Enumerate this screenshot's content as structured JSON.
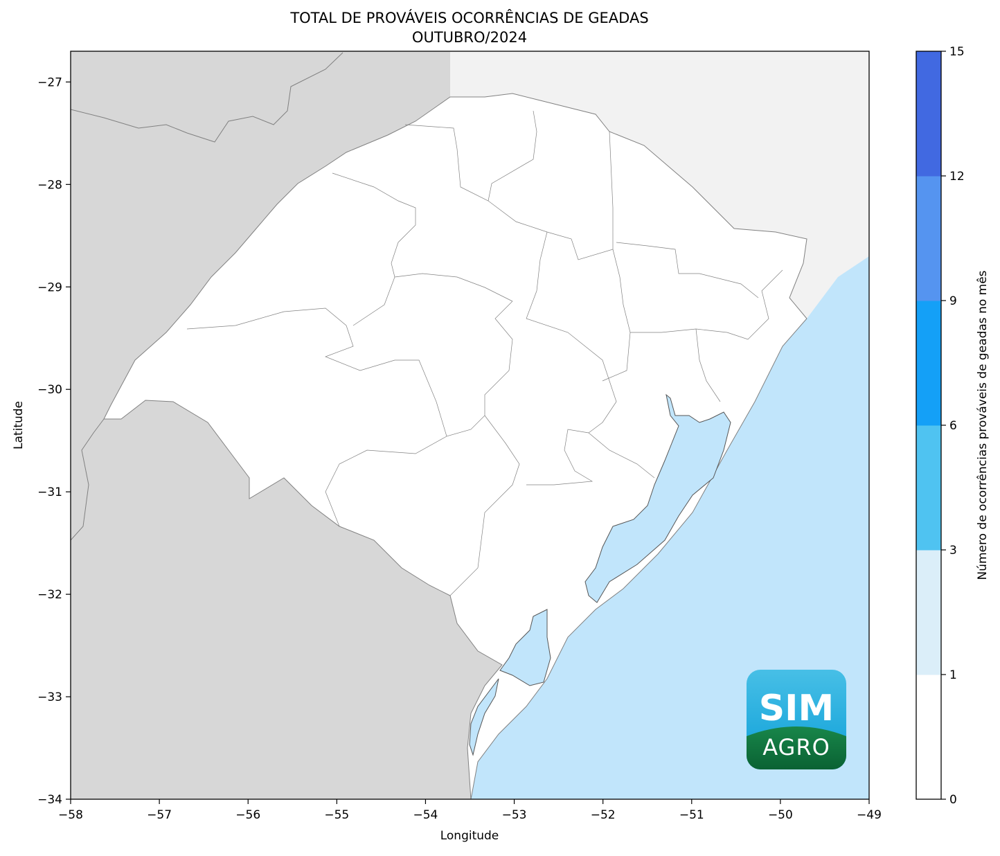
{
  "title": {
    "line1": "TOTAL DE PROVÁVEIS OCORRÊNCIAS DE GEADAS",
    "line2": "OUTUBRO/2024"
  },
  "axes": {
    "xlabel": "Longitude",
    "ylabel": "Latitude",
    "xlim": [
      -58,
      -49
    ],
    "ylim": [
      -34,
      -26.7
    ],
    "xticks": [
      -58,
      -57,
      -56,
      -55,
      -54,
      -53,
      -52,
      -51,
      -50,
      -49
    ],
    "yticks": [
      -27,
      -28,
      -29,
      -30,
      -31,
      -32,
      -33,
      -34
    ],
    "xtick_labels": [
      "−58",
      "−57",
      "−56",
      "−55",
      "−54",
      "−53",
      "−52",
      "−51",
      "−50",
      "−49"
    ],
    "ytick_labels": [
      "−27",
      "−28",
      "−29",
      "−30",
      "−31",
      "−32",
      "−33",
      "−34"
    ]
  },
  "colorbar": {
    "label": "Número de ocorrências prováveis de geadas no mês",
    "boundaries": [
      0,
      1,
      3,
      6,
      9,
      12,
      15
    ],
    "tick_labels": [
      "0",
      "1",
      "3",
      "6",
      "9",
      "12",
      "15"
    ],
    "colors": [
      "#ffffff",
      "#dbeef9",
      "#4fc3f1",
      "#14a0f7",
      "#5594f0",
      "#4169e1"
    ]
  },
  "map_colors": {
    "neighbor_land": "#d7d7d7",
    "santa_catarina": "#f2f2f2",
    "rio_grande_do_sul": "#ffffff",
    "water": "#c1e5fb",
    "border": "#808080"
  },
  "logo": {
    "line1": "SIM",
    "line2": "AGRO"
  }
}
